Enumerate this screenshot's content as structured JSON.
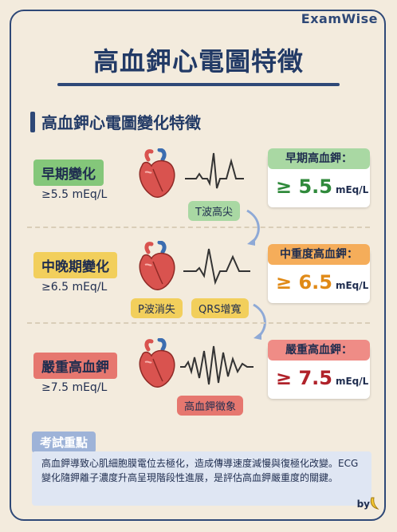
{
  "brand": "ExamWise",
  "title": "高血鉀心電圖特徵",
  "section_title": "高血鉀心電圖變化特徵",
  "stages": [
    {
      "label": "早期變化",
      "threshold": "≥5.5 mEq/L",
      "ecg_tags": [
        "T波高尖"
      ],
      "card_title": "早期高血鉀：",
      "card_value": "≥ 5.5",
      "card_unit": "mEq/L",
      "label_color": "#84c77a",
      "value_color": "#2f8a3b"
    },
    {
      "label": "中晚期變化",
      "threshold": "≥6.5 mEq/L",
      "ecg_tags": [
        "P波消失",
        "QRS增寬"
      ],
      "card_title": "中重度高血鉀：",
      "card_value": "≥ 6.5",
      "card_unit": "mEq/L",
      "label_color": "#f2cf5c",
      "value_color": "#e08a17"
    },
    {
      "label": "嚴重高血鉀",
      "threshold": "≥7.5 mEq/L",
      "ecg_tags": [
        "高血鉀徵象"
      ],
      "card_title": "嚴重高血鉀：",
      "card_value": "≥ 7.5",
      "card_unit": "mEq/L",
      "label_color": "#e6776f",
      "value_color": "#b0222a"
    }
  ],
  "key_points": {
    "heading": "考試重點",
    "text": "高血鉀導致心肌細胞膜電位去極化，造成傳導速度減慢與復極化改變。ECG變化隨鉀離子濃度升高呈現階段性進展，是評估高血鉀嚴重度的關鍵。"
  },
  "byline": "by",
  "icons": [
    "heart-icon",
    "ecg-wave-icon",
    "curved-arrow-icon",
    "banana-icon"
  ]
}
